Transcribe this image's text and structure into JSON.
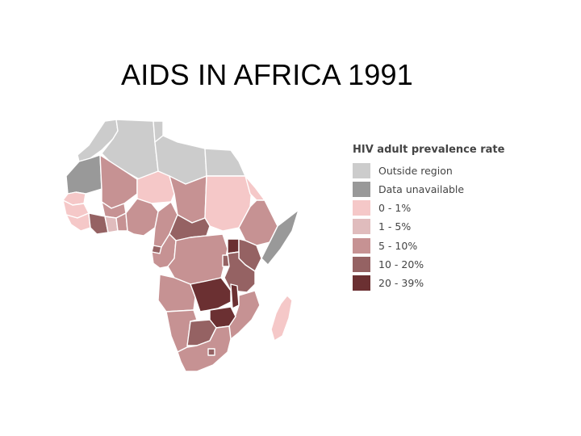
{
  "slide": {
    "title": "AIDS IN AFRICA 1991"
  },
  "legend": {
    "title": "HIV adult prevalence rate",
    "items": [
      {
        "label": "Outside region",
        "color": "#cccccc"
      },
      {
        "label": "Data unavailable",
        "color": "#999999"
      },
      {
        "label": "0 - 1%",
        "color": "#f5c8c8"
      },
      {
        "label": "1 - 5%",
        "color": "#e0bcbd"
      },
      {
        "label": "5 - 10%",
        "color": "#c69293"
      },
      {
        "label": "10 - 20%",
        "color": "#956263"
      },
      {
        "label": "20 - 39%",
        "color": "#6b3032"
      }
    ]
  },
  "map": {
    "border_color": "#ffffff",
    "regions": [
      {
        "name": "morocco-western-sahara",
        "category": "Outside region"
      },
      {
        "name": "algeria",
        "category": "Outside region"
      },
      {
        "name": "tunisia",
        "category": "Outside region"
      },
      {
        "name": "libya",
        "category": "Outside region"
      },
      {
        "name": "egypt",
        "category": "Outside region"
      },
      {
        "name": "mauritania",
        "category": "Data unavailable"
      },
      {
        "name": "somalia",
        "category": "Data unavailable"
      },
      {
        "name": "mali",
        "category": "5 - 10%"
      },
      {
        "name": "niger",
        "category": "0 - 1%"
      },
      {
        "name": "chad",
        "category": "5 - 10%"
      },
      {
        "name": "sudan",
        "category": "0 - 1%"
      },
      {
        "name": "senegal",
        "category": "0 - 1%"
      },
      {
        "name": "guinea",
        "category": "0 - 1%"
      },
      {
        "name": "sierra-leone-liberia",
        "category": "0 - 1%"
      },
      {
        "name": "burkina-faso",
        "category": "5 - 10%"
      },
      {
        "name": "cote-divoire",
        "category": "10 - 20%"
      },
      {
        "name": "ghana",
        "category": "1 - 5%"
      },
      {
        "name": "togo-benin",
        "category": "5 - 10%"
      },
      {
        "name": "nigeria",
        "category": "5 - 10%"
      },
      {
        "name": "cameroon",
        "category": "5 - 10%"
      },
      {
        "name": "central-african-republic",
        "category": "10 - 20%"
      },
      {
        "name": "ethiopia",
        "category": "5 - 10%"
      },
      {
        "name": "eritrea",
        "category": "0 - 1%"
      },
      {
        "name": "gabon-congo",
        "category": "5 - 10%"
      },
      {
        "name": "equatorial-guinea",
        "category": "10 - 20%"
      },
      {
        "name": "dr-congo",
        "category": "5 - 10%"
      },
      {
        "name": "uganda",
        "category": "20 - 39%"
      },
      {
        "name": "kenya",
        "category": "10 - 20%"
      },
      {
        "name": "rwanda-burundi",
        "category": "10 - 20%"
      },
      {
        "name": "tanzania",
        "category": "10 - 20%"
      },
      {
        "name": "angola",
        "category": "5 - 10%"
      },
      {
        "name": "zambia",
        "category": "20 - 39%"
      },
      {
        "name": "malawi",
        "category": "20 - 39%"
      },
      {
        "name": "mozambique",
        "category": "5 - 10%"
      },
      {
        "name": "namibia",
        "category": "5 - 10%"
      },
      {
        "name": "botswana",
        "category": "10 - 20%"
      },
      {
        "name": "zimbabwe",
        "category": "20 - 39%"
      },
      {
        "name": "south-africa",
        "category": "5 - 10%"
      },
      {
        "name": "lesotho-swaziland",
        "category": "10 - 20%"
      },
      {
        "name": "madagascar",
        "category": "0 - 1%"
      }
    ]
  }
}
